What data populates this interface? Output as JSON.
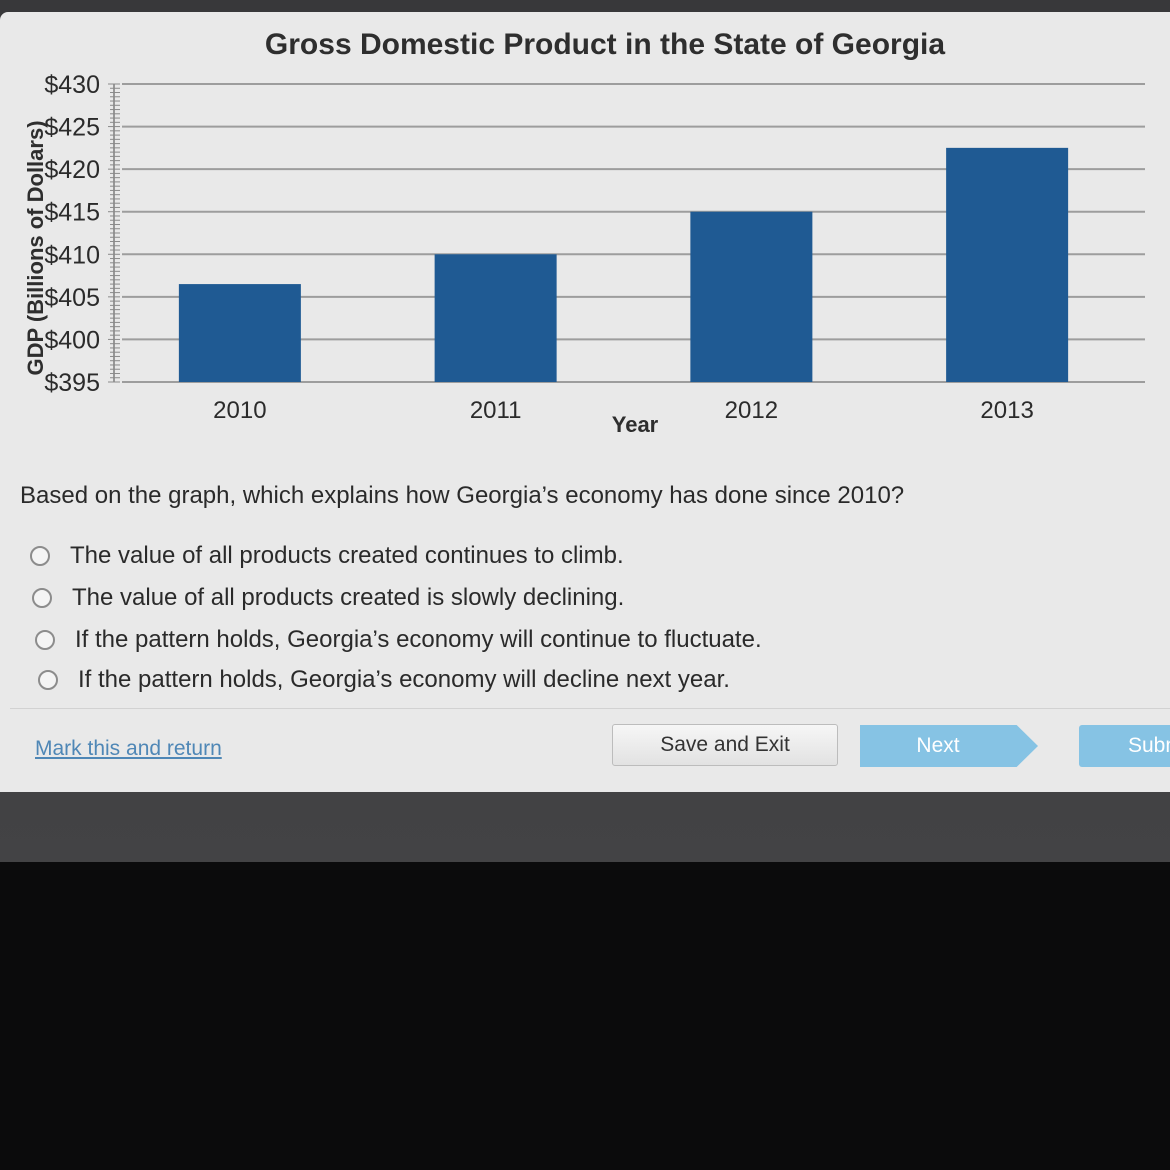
{
  "chart_data": {
    "type": "bar",
    "title": "Gross Domestic Product in the State of Georgia",
    "xlabel": "Year",
    "ylabel": "GDP (Billions of Dollars)",
    "categories": [
      "2010",
      "2011",
      "2012",
      "2013"
    ],
    "values": [
      406.5,
      410,
      415,
      422.5
    ],
    "ylim": [
      395,
      430
    ],
    "y_ticks": [
      395,
      400,
      405,
      410,
      415,
      420,
      425,
      430
    ],
    "y_tick_labels": [
      "$395",
      "$400",
      "$405",
      "$410",
      "$415",
      "$420",
      "$425",
      "$430"
    ],
    "bar_color": "#1f5a93",
    "grid": true,
    "legend": "none"
  },
  "question": {
    "text": "Based on the graph, which explains how Georgia’s economy has done since 2010?",
    "options": [
      "The value of all products created continues to climb.",
      "The value of all products created is slowly declining.",
      "If the pattern holds, Georgia’s economy will continue to fluctuate.",
      "If the pattern holds, Georgia’s economy will decline next year."
    ]
  },
  "footer": {
    "mark_link": "Mark this and return",
    "save_label": "Save and Exit",
    "next_label": "Next",
    "submit_label": "Subm"
  },
  "colors": {
    "accent": "#86c3e4",
    "link": "#4f87b6",
    "bar": "#1f5a93"
  }
}
